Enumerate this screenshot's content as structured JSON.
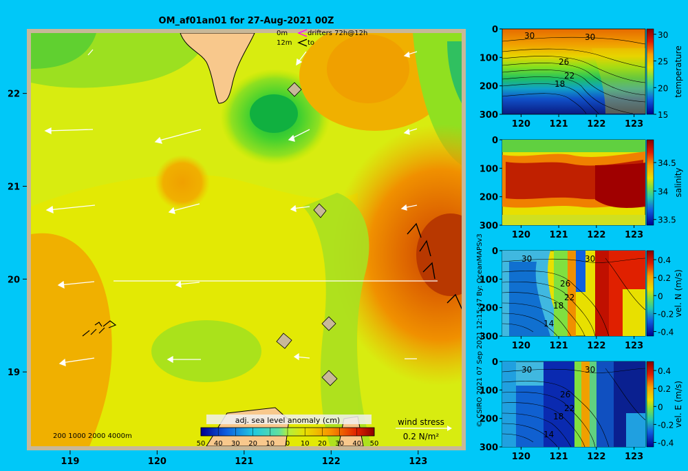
{
  "title": "OM_af01an01 for 27-Aug-2021 00Z",
  "legend_top": {
    "depth1": "0m",
    "depth2": "12m",
    "drifters": "drifters 72h@12h",
    "to": "to"
  },
  "bathymetry_label": "200  1000  2000  4000m",
  "wind": {
    "label": "wind stress",
    "scale": "0.2 N/m²"
  },
  "credit": "© CSIRO 2021   07 Sep 2021 12:15:47 By: OceanMAPSv3",
  "colors": {
    "background": "#00c8f8",
    "land": "#f8c88c",
    "frame": "#c8b898",
    "arrow": "#ffffff",
    "contour": "#000000"
  },
  "chart_data": [
    {
      "type": "heatmap",
      "name": "map",
      "title": "OM_af01an01 for 27-Aug-2021 00Z",
      "x_ticks": [
        "119",
        "120",
        "121",
        "122",
        "123"
      ],
      "y_ticks": [
        "19",
        "20",
        "21",
        "22"
      ],
      "xlim": [
        118.55,
        123.5
      ],
      "ylim": [
        18.2,
        22.65
      ],
      "colorbar": {
        "label": "adj. sea level anomaly (cm)",
        "ticks": [
          "50",
          "40",
          "30",
          "20",
          "10",
          "0",
          "10",
          "20",
          "30",
          "40",
          "50"
        ],
        "range": [
          -50,
          50
        ]
      },
      "grid": false
    },
    {
      "type": "heatmap",
      "name": "temperature",
      "ylabel": "temperature",
      "x_ticks": [
        "120",
        "121",
        "122",
        "123"
      ],
      "y_ticks": [
        "0",
        "100",
        "200",
        "300"
      ],
      "xlim": [
        119.5,
        123.3
      ],
      "ylim": [
        300,
        0
      ],
      "cbar_ticks": [
        "30",
        "25",
        "20",
        "15"
      ],
      "cbar_range": [
        15,
        31
      ],
      "contour_labels": [
        "30",
        "30",
        "26",
        "22",
        "18"
      ]
    },
    {
      "type": "heatmap",
      "name": "salinity",
      "ylabel": "salinity",
      "x_ticks": [
        "120",
        "121",
        "122",
        "123"
      ],
      "y_ticks": [
        "0",
        "100",
        "200",
        "300"
      ],
      "xlim": [
        119.5,
        123.3
      ],
      "ylim": [
        300,
        0
      ],
      "cbar_ticks": [
        "34.5",
        "34",
        "33.5"
      ],
      "cbar_range": [
        33.4,
        34.9
      ]
    },
    {
      "type": "heatmap",
      "name": "velocity-north",
      "ylabel": "vel. N (m/s)",
      "x_ticks": [
        "120",
        "121",
        "122",
        "123"
      ],
      "y_ticks": [
        "0",
        "100",
        "200",
        "300"
      ],
      "xlim": [
        119.5,
        123.3
      ],
      "ylim": [
        300,
        0
      ],
      "cbar_ticks": [
        "0.4",
        "0.2",
        "0",
        "-0.2",
        "-0.4"
      ],
      "cbar_range": [
        -0.45,
        0.5
      ],
      "contour_labels": [
        "30",
        "30",
        "26",
        "22",
        "18",
        "14"
      ]
    },
    {
      "type": "heatmap",
      "name": "velocity-east",
      "ylabel": "vel. E (m/s)",
      "x_ticks": [
        "120",
        "121",
        "122",
        "123"
      ],
      "y_ticks": [
        "0",
        "100",
        "200",
        "300"
      ],
      "xlim": [
        119.5,
        123.3
      ],
      "ylim": [
        300,
        0
      ],
      "cbar_ticks": [
        "0.4",
        "0.2",
        "0",
        "-0.2",
        "-0.4"
      ],
      "cbar_range": [
        -0.45,
        0.5
      ],
      "contour_labels": [
        "30",
        "30",
        "26",
        "22",
        "18",
        "14"
      ]
    }
  ]
}
